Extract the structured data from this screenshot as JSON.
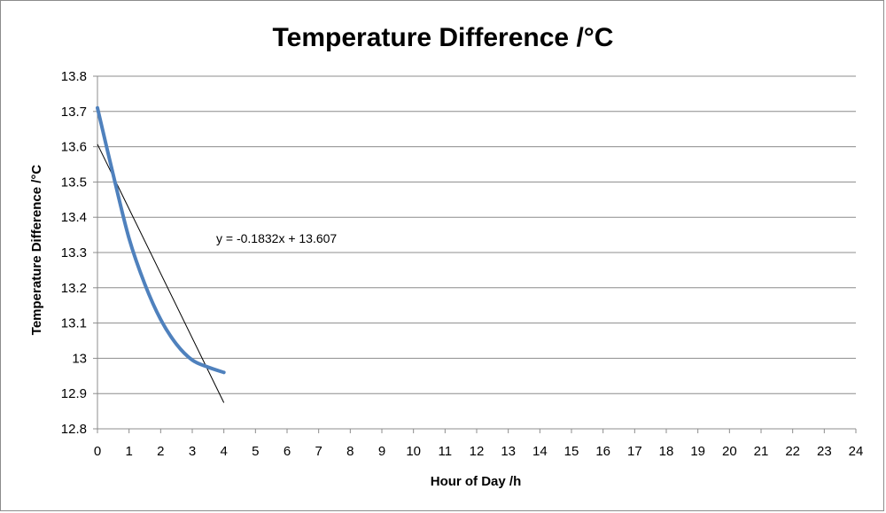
{
  "chart_data": {
    "type": "line",
    "title": "Temperature Difference /°C",
    "xlabel": "Hour of Day /h",
    "ylabel": "Temperature Difference /°C",
    "xlim": [
      0,
      24
    ],
    "ylim": [
      12.8,
      13.8
    ],
    "x_ticks": [
      "0",
      "1",
      "2",
      "3",
      "4",
      "5",
      "6",
      "7",
      "8",
      "9",
      "10",
      "11",
      "12",
      "13",
      "14",
      "15",
      "16",
      "17",
      "18",
      "19",
      "20",
      "21",
      "22",
      "23",
      "24"
    ],
    "y_ticks": [
      "12.8",
      "12.9",
      "13",
      "13.1",
      "13.2",
      "13.3",
      "13.4",
      "13.5",
      "13.6",
      "13.7",
      "13.8"
    ],
    "grid": true,
    "legend": "none",
    "series": [
      {
        "x": [
          0,
          0.5,
          1,
          1.5,
          2,
          2.5,
          3,
          3.5,
          4
        ],
        "y": [
          13.71,
          13.52,
          13.34,
          13.21,
          13.11,
          13.04,
          12.995,
          12.975,
          12.96
        ],
        "color": "#4f81bd"
      }
    ],
    "trendline": {
      "equation": "y = -0.1832x + 13.607",
      "slope": -0.1832,
      "intercept": 13.607,
      "x_range": [
        0,
        4
      ],
      "color": "#000000"
    }
  }
}
